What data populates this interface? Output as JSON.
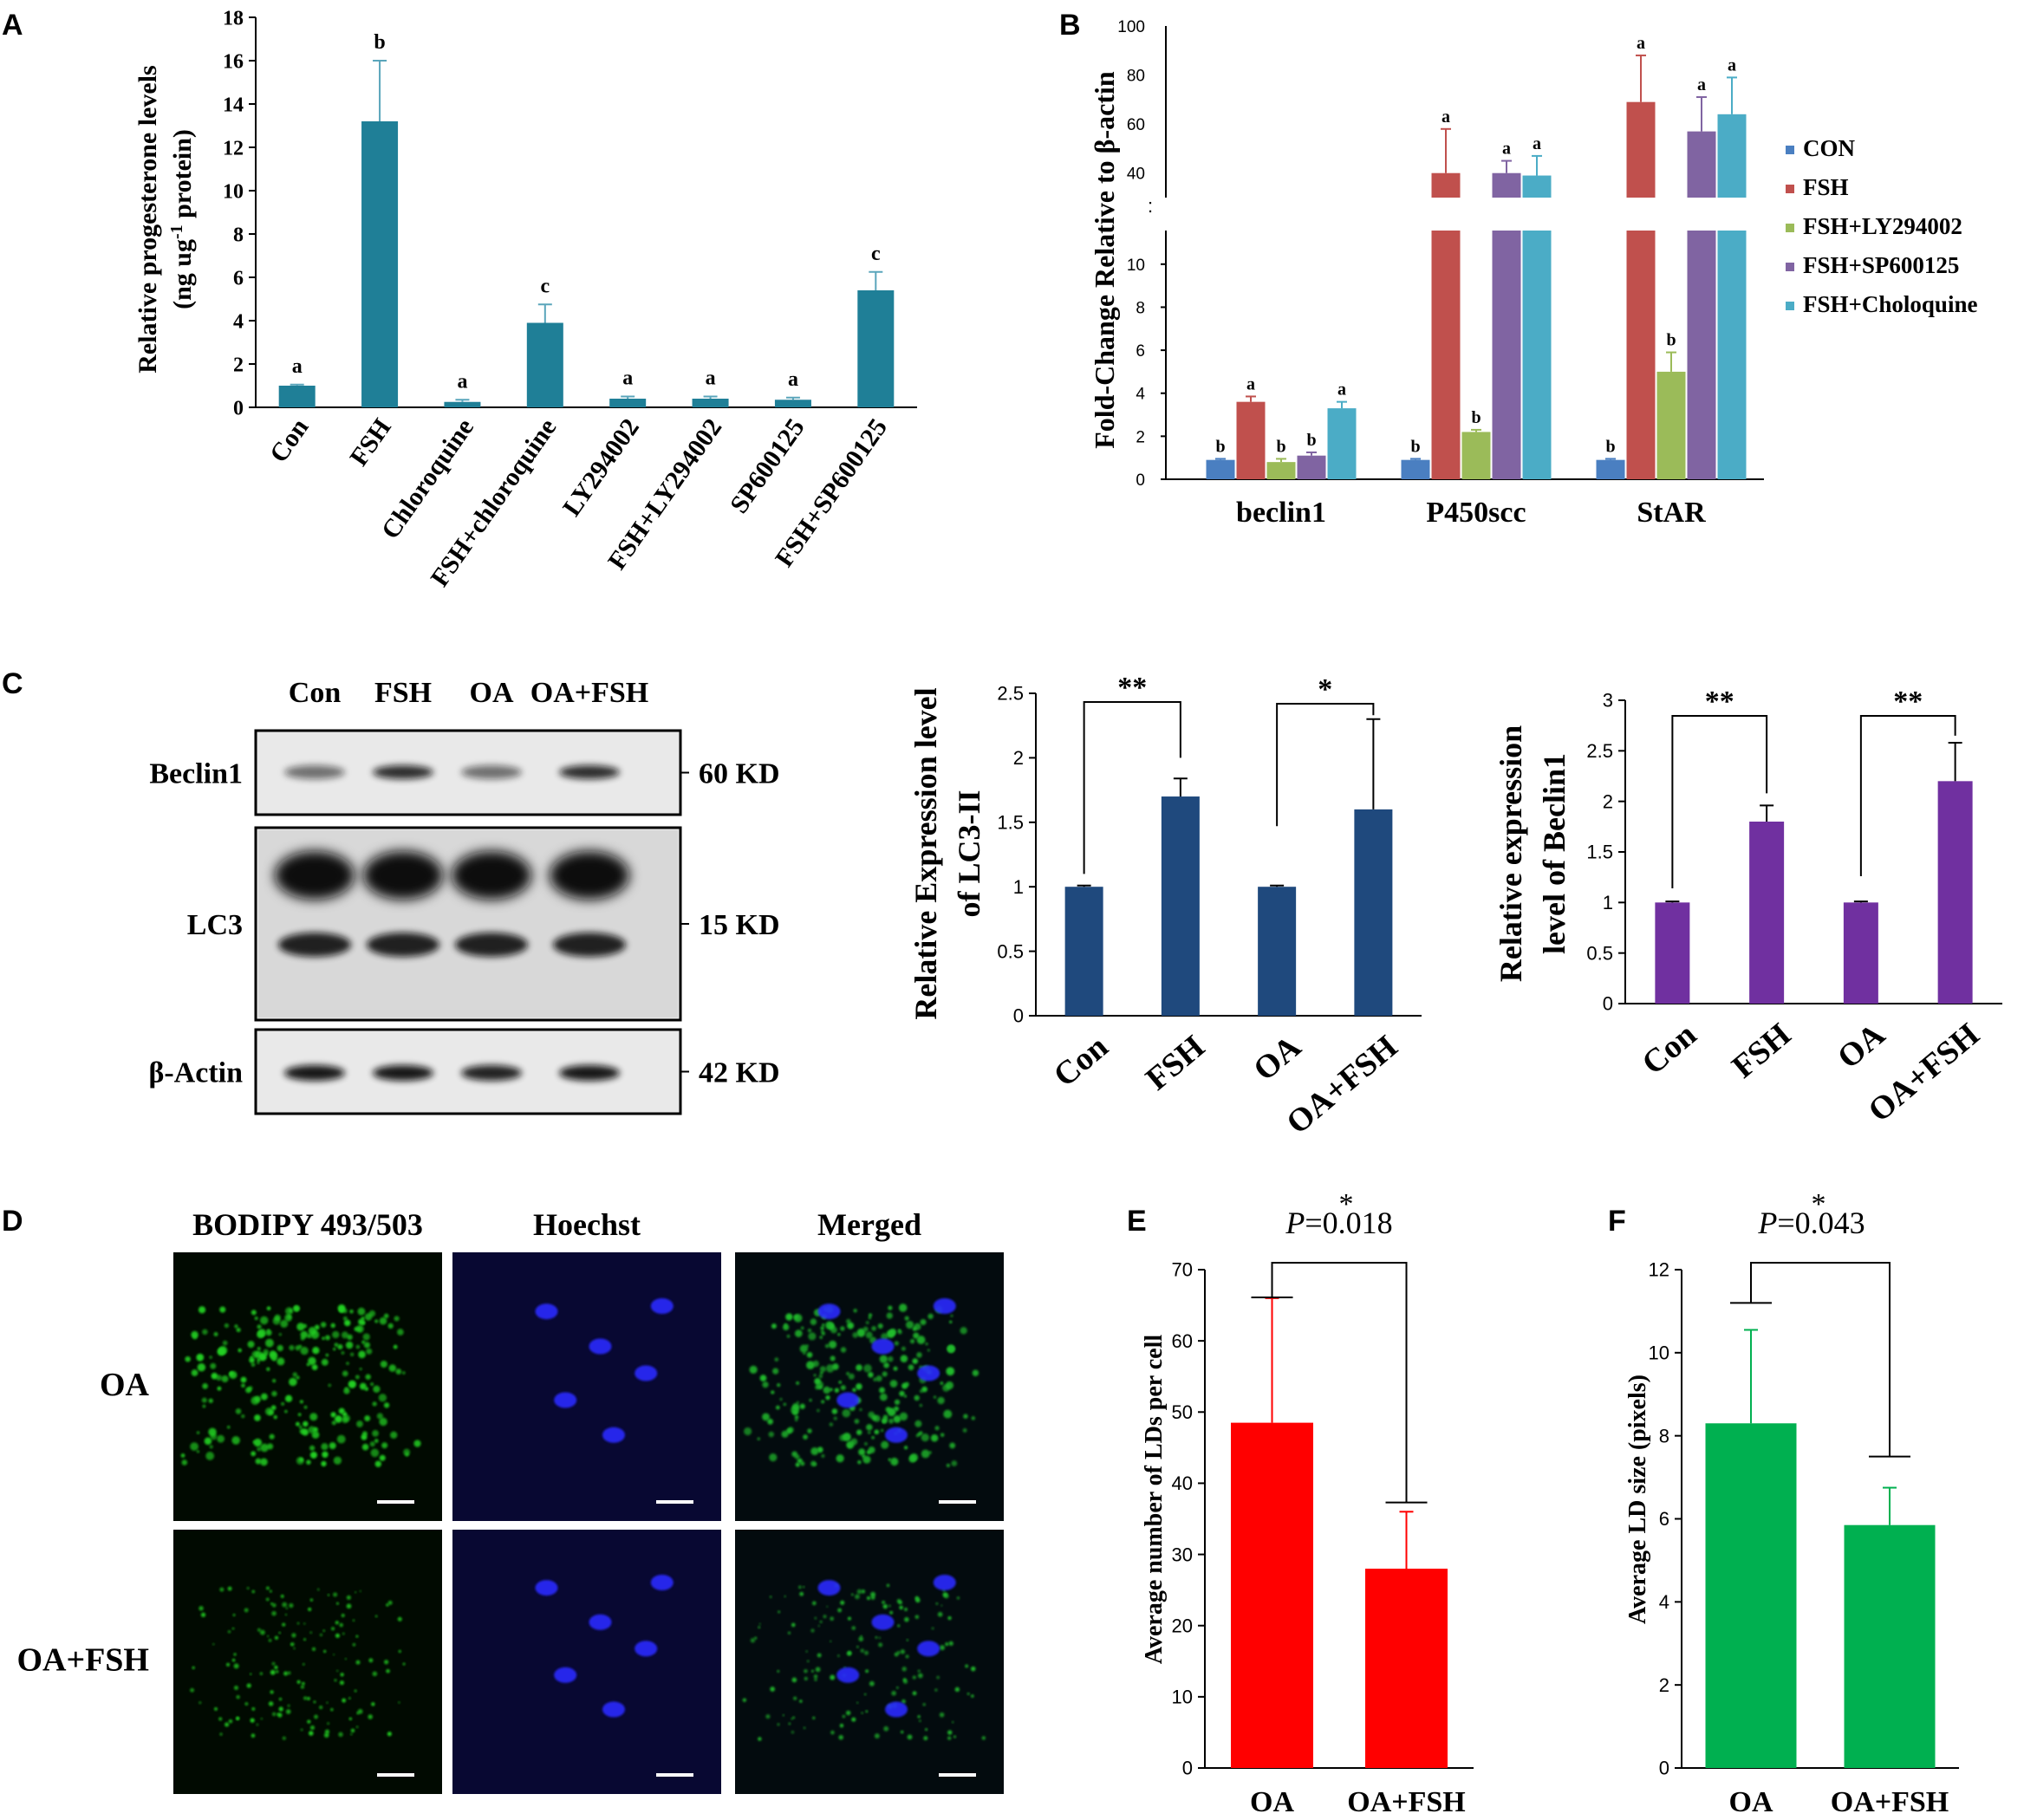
{
  "panel_letters": [
    "A",
    "B",
    "C",
    "D",
    "E",
    "F"
  ],
  "colors": {
    "teal": "#1f7f97",
    "con": "#4a7fc1",
    "fsh": "#c0504d",
    "ly": "#9bbb59",
    "sp": "#8064a2",
    "chl": "#4bacc6",
    "navy": "#1f497d",
    "purple": "#7030a0",
    "red": "#ff0000",
    "green": "#00b050",
    "bodipy": "#22d022",
    "hoechst": "#2c2cff"
  },
  "chart_data": [
    {
      "id": "A",
      "type": "bar",
      "ylabel_line1": "Relative progesterone levels",
      "ylabel_line2_pre": "(ng ug",
      "ylabel_line2_sup": "-1",
      "ylabel_line2_post": " protein)",
      "categories": [
        "Con",
        "FSH",
        "Chloroquine",
        "FSH+chloroquine",
        "LY294002",
        "FSH+LY294002",
        "SP600125",
        "FSH+SP600125"
      ],
      "values": [
        1.0,
        13.2,
        0.25,
        3.9,
        0.4,
        0.4,
        0.35,
        5.4
      ],
      "errors": [
        0.05,
        2.8,
        0.1,
        0.85,
        0.1,
        0.1,
        0.1,
        0.85
      ],
      "labels": [
        "a",
        "b",
        "a",
        "c",
        "a",
        "a",
        "a",
        "c"
      ],
      "ylim": [
        0,
        18
      ],
      "yticks": [
        "0",
        "2",
        "4",
        "6",
        "8",
        "10",
        "12",
        "14",
        "16",
        "18"
      ]
    },
    {
      "id": "B",
      "type": "bar",
      "ylabel": "Fold-Change Relative to β-actin",
      "categories": [
        "beclin1",
        "P450scc",
        "StAR"
      ],
      "series": [
        {
          "name": "CON",
          "values": [
            0.9,
            0.9,
            0.9
          ],
          "errors": [
            0.05,
            0.05,
            0.05
          ],
          "labels": [
            "b",
            "b",
            "b"
          ]
        },
        {
          "name": "FSH",
          "values": [
            3.6,
            40,
            69
          ],
          "errors": [
            0.25,
            18,
            19
          ],
          "labels": [
            "a",
            "a",
            "a"
          ]
        },
        {
          "name": "FSH+LY294002",
          "values": [
            0.8,
            2.2,
            5.0
          ],
          "errors": [
            0.15,
            0.1,
            0.9
          ],
          "labels": [
            "b",
            "b",
            "b"
          ]
        },
        {
          "name": "FSH+SP600125",
          "values": [
            1.1,
            40,
            57
          ],
          "errors": [
            0.15,
            5,
            14
          ],
          "labels": [
            "b",
            "a",
            "a"
          ]
        },
        {
          "name": "FSH+Choloquine",
          "values": [
            3.3,
            39,
            64
          ],
          "errors": [
            0.3,
            8,
            15
          ],
          "labels": [
            "a",
            "a",
            "a"
          ]
        }
      ],
      "yticks_lower": [
        "0",
        "2",
        "4",
        "6",
        "8",
        "10"
      ],
      "yticks_upper": [
        "40",
        "60",
        "80",
        "100"
      ],
      "ylim_lower": [
        0,
        11
      ],
      "ylim_upper": [
        30,
        100
      ],
      "axis_break": true
    },
    {
      "id": "C-LC3",
      "type": "bar",
      "ylabel_line1": "Relative Expression level",
      "ylabel_line2": "of LC3-II",
      "categories": [
        "Con",
        "FSH",
        "OA",
        "OA+FSH"
      ],
      "values": [
        1.0,
        1.7,
        1.0,
        1.6
      ],
      "errors": [
        0.01,
        0.14,
        0.01,
        0.7
      ],
      "ylim": [
        0,
        2.5
      ],
      "yticks": [
        "0",
        "0.5",
        "1",
        "1.5",
        "2",
        "2.5"
      ],
      "significance": [
        "**",
        "*"
      ]
    },
    {
      "id": "C-Beclin1",
      "type": "bar",
      "ylabel_line1": "Relative expression",
      "ylabel_line2": "level of Beclin1",
      "categories": [
        "Con",
        "FSH",
        "OA",
        "OA+FSH"
      ],
      "values": [
        1.0,
        1.8,
        1.0,
        2.2
      ],
      "errors": [
        0.01,
        0.16,
        0.01,
        0.38
      ],
      "ylim": [
        0,
        3
      ],
      "yticks": [
        "0",
        "0.5",
        "1",
        "1.5",
        "2",
        "2.5",
        "3"
      ],
      "significance": [
        "**",
        "**"
      ]
    },
    {
      "id": "E",
      "type": "bar",
      "ylabel": "Average number of LDs per cell",
      "pvalue_label": "P",
      "pvalue_text": "=0.018",
      "star": "*",
      "categories": [
        "OA",
        "OA+FSH"
      ],
      "values": [
        48.5,
        28
      ],
      "errors": [
        17.5,
        8
      ],
      "ylim": [
        0,
        70
      ],
      "yticks": [
        "0",
        "10",
        "20",
        "30",
        "40",
        "50",
        "60",
        "70"
      ]
    },
    {
      "id": "F",
      "type": "bar",
      "ylabel": "Average LD size (pixels)",
      "pvalue_label": "P",
      "pvalue_text": "=0.043",
      "star": "*",
      "categories": [
        "OA",
        "OA+FSH"
      ],
      "values": [
        8.3,
        5.85
      ],
      "errors": [
        2.25,
        0.9
      ],
      "ylim": [
        0,
        12
      ],
      "yticks": [
        "0",
        "2",
        "4",
        "6",
        "8",
        "10",
        "12"
      ]
    }
  ],
  "western_blot": {
    "lanes": [
      "Con",
      "FSH",
      "OA",
      "OA+FSH"
    ],
    "rows": [
      {
        "label": "Beclin1",
        "size": "60 KD"
      },
      {
        "label": "LC3",
        "size": "15 KD"
      },
      {
        "label": "β-Actin",
        "size": "42 KD"
      }
    ]
  },
  "microscopy": {
    "columns": [
      "BODIPY 493/503",
      "Hoechst",
      "Merged"
    ],
    "rows": [
      "OA",
      "OA+FSH"
    ]
  }
}
